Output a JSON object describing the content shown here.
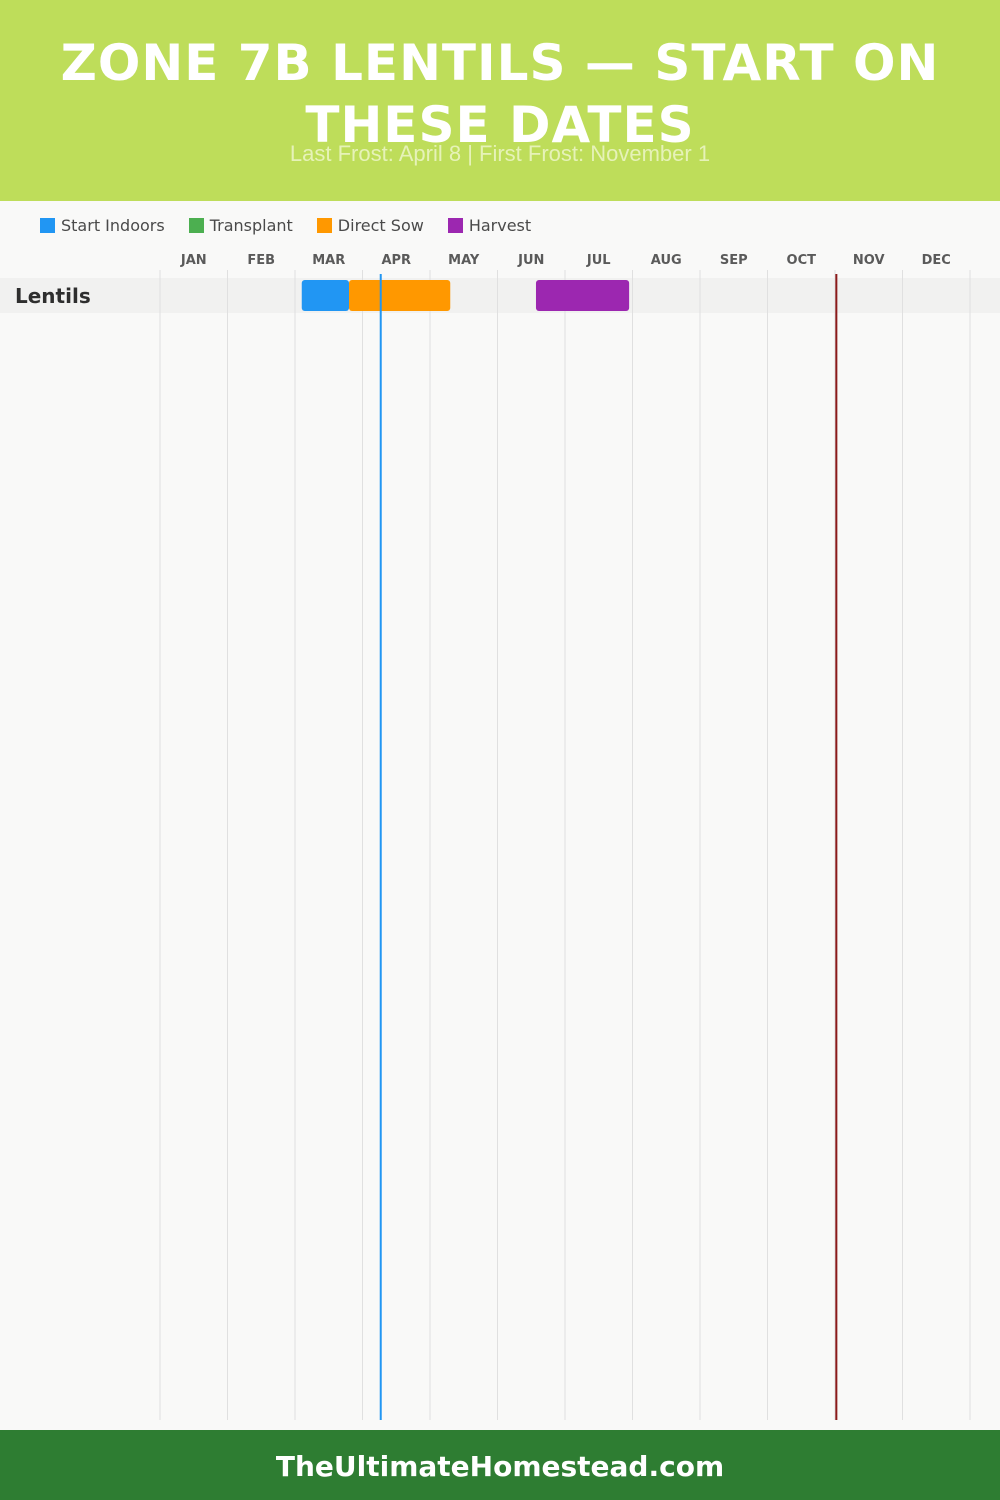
{
  "header": {
    "title": "ZONE 7B LENTILS — START ON THESE DATES",
    "subtitle": "Last Frost: April 8 | First Frost: November 1"
  },
  "legend": [
    {
      "label": "Start Indoors",
      "color": "#2196f3"
    },
    {
      "label": "Transplant",
      "color": "#4caf50"
    },
    {
      "label": "Direct Sow",
      "color": "#ff9800"
    },
    {
      "label": "Harvest",
      "color": "#9c27b0"
    }
  ],
  "chart_data": {
    "type": "gantt",
    "x_unit": "month (1.0 = Jan 1, 13.0 = end of Dec)",
    "months": [
      "JAN",
      "FEB",
      "MAR",
      "APR",
      "MAY",
      "JUN",
      "JUL",
      "AUG",
      "SEP",
      "OCT",
      "NOV",
      "DEC"
    ],
    "rows": [
      {
        "crop": "Lentils",
        "bars": [
          {
            "phase": "Start Indoors",
            "start": 3.1,
            "end": 3.8
          },
          {
            "phase": "Direct Sow",
            "start": 3.8,
            "end": 5.3
          },
          {
            "phase": "Harvest",
            "start": 6.57,
            "end": 7.95
          }
        ]
      }
    ],
    "markers": [
      {
        "name": "Last Frost",
        "date": "April 8",
        "value": 4.27,
        "color": "#2196f3"
      },
      {
        "name": "First Frost",
        "date": "November 1",
        "value": 11.02,
        "color": "#8b1a1a"
      }
    ],
    "grid": true
  },
  "footer": {
    "text": "TheUltimateHomestead.com"
  }
}
